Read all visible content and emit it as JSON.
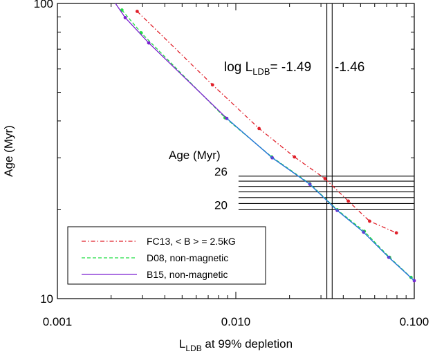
{
  "chart_data": {
    "type": "line",
    "xlabel_main": "L",
    "xlabel_sub": "LDB",
    "xlabel_rest": " at 99% depletion",
    "ylabel": "Age (Myr)",
    "x_scale": "log",
    "y_scale": "log",
    "xlim": [
      0.001,
      0.1
    ],
    "ylim": [
      10,
      100
    ],
    "x_ticks": [
      {
        "value": 0.001,
        "label": "0.001"
      },
      {
        "value": 0.01,
        "label": "0.010"
      },
      {
        "value": 0.1,
        "label": "0.100"
      }
    ],
    "y_ticks": [
      {
        "value": 10,
        "label": "10"
      },
      {
        "value": 100,
        "label": "100"
      }
    ],
    "series": [
      {
        "name": "FC13, < B > = 2.5kG",
        "color": "#e0202a",
        "style": "dashdot",
        "marker": "red-dot",
        "x": [
          0.0028,
          0.0074,
          0.0135,
          0.0213,
          0.0316,
          0.0427,
          0.0562,
          0.0794
        ],
        "y": [
          94,
          53,
          37.7,
          30.2,
          25.5,
          21.4,
          18.3,
          16.7
        ]
      },
      {
        "name": "D08, non-magnetic",
        "color": "#22dd44",
        "style": "dashed",
        "marker": "green-dot",
        "x": [
          0.0023,
          0.00295,
          0.0087,
          0.0159,
          0.026,
          0.037,
          0.0525,
          0.0727,
          0.0959
        ],
        "y": [
          95,
          79.5,
          41,
          30.2,
          24.5,
          20,
          16.9,
          13.8,
          11.8
        ]
      },
      {
        "name": "B15, non-magnetic",
        "color": "#7a1fd0",
        "style": "solid",
        "marker": "violet-dot",
        "x": [
          0.0019,
          0.0024,
          0.00325,
          0.0089,
          0.016,
          0.026,
          0.037,
          0.052,
          0.072,
          0.1
        ],
        "y": [
          110,
          89.5,
          73.5,
          40.8,
          30,
          24.4,
          19.9,
          16.8,
          13.8,
          11.5
        ]
      },
      {
        "name": "",
        "color": "#1e80d8",
        "style": "solid",
        "marker": "none",
        "x": [
          0.0089,
          0.016,
          0.026,
          0.037,
          0.052,
          0.072,
          0.1
        ],
        "y": [
          40.8,
          30,
          24.4,
          19.9,
          16.8,
          13.8,
          11.5
        ]
      }
    ],
    "vertical_lines": [
      {
        "log_value": -1.49,
        "label": "-1.49"
      },
      {
        "log_value": -1.46,
        "label": "-1.46"
      }
    ],
    "vline_label_main": "log L",
    "vline_label_sub": "LDB",
    "vline_label_eq": "=",
    "horizontal_lines": [
      20,
      21,
      22,
      23,
      24,
      25,
      26
    ],
    "hline_group_title": "Age (Myr)",
    "hline_labels": [
      {
        "value": 26,
        "label": "26"
      },
      {
        "value": 20,
        "label": "20"
      }
    ],
    "legend": {
      "position": "bottom-left",
      "entries": [
        "FC13, < B > = 2.5kG",
        "D08, non-magnetic",
        "B15, non-magnetic"
      ]
    },
    "grid": false
  }
}
